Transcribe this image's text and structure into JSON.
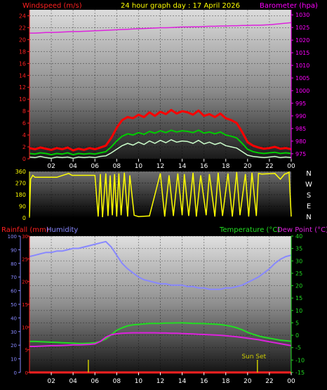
{
  "header": {
    "left_label": "Windspeed (m/s)",
    "title": "24 hour graph day : 17 April 2026",
    "right_label": "Barometer (hpa)"
  },
  "colors": {
    "background": "#000000",
    "wind_axis": "#ff2020",
    "baro_axis": "#ff00ff",
    "wind_gust": "#ff0000",
    "wind_avg": "#00cc00",
    "wind_speed": "#ccffcc",
    "barometer": "#dd22dd",
    "direction": "#ffff00",
    "temperature": "#22dd22",
    "dewpoint": "#dd22dd",
    "humidity": "#8888ff",
    "rain": "#ff2020",
    "header_title": "#ffff00",
    "sunrise_marker": "#cccc00"
  },
  "x_axis": {
    "tick_labels": [
      "02",
      "04",
      "06",
      "08",
      "10",
      "12",
      "14",
      "16",
      "18",
      "20",
      "22",
      "00"
    ]
  },
  "chart_data": [
    {
      "type": "line",
      "name": "wind_barometer",
      "x_hours": [
        0,
        0.5,
        1,
        1.5,
        2,
        2.5,
        3,
        3.5,
        4,
        4.5,
        5,
        5.5,
        6,
        6.5,
        7,
        7.5,
        8,
        8.5,
        9,
        9.5,
        10,
        10.5,
        11,
        11.5,
        12,
        12.5,
        13,
        13.5,
        14,
        14.5,
        15,
        15.5,
        16,
        16.5,
        17,
        17.5,
        18,
        18.5,
        19,
        19.5,
        20,
        20.5,
        21,
        21.5,
        22,
        22.5,
        23,
        23.5,
        24
      ],
      "series": [
        {
          "key": "gust",
          "values": [
            1.8,
            1.6,
            1.9,
            1.7,
            1.5,
            1.8,
            1.6,
            1.9,
            1.4,
            1.7,
            1.5,
            1.8,
            1.6,
            1.9,
            2.2,
            3.5,
            5.2,
            6.5,
            7.0,
            6.8,
            7.4,
            7.0,
            7.8,
            7.2,
            7.9,
            7.5,
            8.2,
            7.6,
            8.0,
            7.8,
            7.4,
            8.1,
            7.2,
            7.5,
            7.0,
            7.6,
            6.8,
            6.5,
            6.0,
            4.5,
            2.8,
            2.2,
            1.9,
            1.7,
            1.8,
            2.0,
            1.7,
            1.8,
            1.6
          ]
        },
        {
          "key": "average",
          "values": [
            0.9,
            0.8,
            1.0,
            0.9,
            0.7,
            0.9,
            0.8,
            1.0,
            0.7,
            0.9,
            0.8,
            0.9,
            0.8,
            1.0,
            1.2,
            2.0,
            3.0,
            3.8,
            4.2,
            4.0,
            4.4,
            4.1,
            4.6,
            4.3,
            4.7,
            4.4,
            4.8,
            4.5,
            4.7,
            4.6,
            4.4,
            4.8,
            4.3,
            4.5,
            4.2,
            4.5,
            4.0,
            3.8,
            3.5,
            2.6,
            1.6,
            1.2,
            1.0,
            0.9,
            1.0,
            1.1,
            0.9,
            1.0,
            0.9
          ]
        },
        {
          "key": "speed",
          "values": [
            0.3,
            0.2,
            0.4,
            0.2,
            0.1,
            0.3,
            0.2,
            0.3,
            0.1,
            0.3,
            0.2,
            0.3,
            0.2,
            0.4,
            0.5,
            1.0,
            1.6,
            2.2,
            2.6,
            2.3,
            2.8,
            2.4,
            3.0,
            2.6,
            3.1,
            2.7,
            3.2,
            2.8,
            3.0,
            2.9,
            2.6,
            3.1,
            2.5,
            2.8,
            2.4,
            2.7,
            2.2,
            2.0,
            1.8,
            1.2,
            0.6,
            0.4,
            0.3,
            0.2,
            0.3,
            0.4,
            0.2,
            0.3,
            0.2
          ]
        }
      ],
      "barometer_values": [
        1022.8,
        1022.8,
        1022.9,
        1023.0,
        1023.0,
        1023.1,
        1023.2,
        1023.3,
        1023.4,
        1023.4,
        1023.5,
        1023.6,
        1023.7,
        1023.8,
        1023.9,
        1024.0,
        1024.1,
        1024.2,
        1024.3,
        1024.4,
        1024.5,
        1024.6,
        1024.7,
        1024.8,
        1024.9,
        1024.9,
        1025.0,
        1025.1,
        1025.2,
        1025.2,
        1025.3,
        1025.3,
        1025.4,
        1025.5,
        1025.5,
        1025.6,
        1025.6,
        1025.7,
        1025.7,
        1025.8,
        1025.8,
        1025.9,
        1025.9,
        1026.0,
        1026.1,
        1026.3,
        1026.5,
        1026.7,
        1026.9
      ],
      "wind_ticks": [
        0,
        2,
        4,
        6,
        8,
        10,
        12,
        14,
        16,
        18,
        20,
        22,
        24
      ],
      "baro_ticks": [
        975,
        980,
        985,
        990,
        995,
        1000,
        1005,
        1010,
        1015,
        1020,
        1025,
        1030
      ],
      "wind_range": [
        0,
        25
      ],
      "baro_range": [
        973,
        1032
      ]
    },
    {
      "type": "line",
      "name": "wind_direction",
      "y_ticks": [
        0,
        90,
        180,
        270,
        360
      ],
      "y_range": [
        0,
        360
      ],
      "compass_labels": [
        "N",
        "W",
        "S",
        "E",
        "N"
      ],
      "x_hours": [
        0,
        0.1,
        0.3,
        0.5,
        2.5,
        3.6,
        3.9,
        6.0,
        6.3,
        6.5,
        6.7,
        7.0,
        7.2,
        7.4,
        7.6,
        7.8,
        8.0,
        8.2,
        8.4,
        8.7,
        9.0,
        9.2,
        9.6,
        10.0,
        11.0,
        12.0,
        12.4,
        12.8,
        13.2,
        13.6,
        14.0,
        14.2,
        14.6,
        15.0,
        15.3,
        15.7,
        16.2,
        16.5,
        17.0,
        17.3,
        17.7,
        18.2,
        18.6,
        19.0,
        19.3,
        19.8,
        20.1,
        20.4,
        20.8,
        21.0,
        21.3,
        22.5,
        23.0,
        23.4,
        23.6,
        23.8,
        24.0
      ],
      "values": [
        10,
        300,
        330,
        315,
        315,
        345,
        330,
        330,
        10,
        340,
        5,
        345,
        15,
        330,
        20,
        340,
        10,
        345,
        20,
        350,
        10,
        330,
        20,
        10,
        15,
        345,
        10,
        330,
        15,
        345,
        20,
        340,
        15,
        350,
        10,
        330,
        20,
        340,
        10,
        350,
        15,
        345,
        10,
        355,
        20,
        340,
        10,
        350,
        15,
        345,
        340,
        345,
        300,
        340,
        345,
        355,
        10
      ]
    },
    {
      "type": "line",
      "name": "temp_humidity_rain",
      "x_hours": [
        0,
        0.5,
        1,
        1.5,
        2,
        2.5,
        3,
        3.5,
        4,
        4.5,
        5,
        5.5,
        6,
        6.5,
        7,
        7.5,
        8,
        8.5,
        9,
        9.5,
        10,
        10.5,
        11,
        11.5,
        12,
        12.5,
        13,
        13.5,
        14,
        14.5,
        15,
        15.5,
        16,
        16.5,
        17,
        17.5,
        18,
        18.5,
        19,
        19.5,
        20,
        20.5,
        21,
        21.5,
        22,
        22.5,
        23,
        23.5,
        24
      ],
      "series": [
        {
          "key": "temperature",
          "values": [
            -2.5,
            -2.5,
            -2.6,
            -2.7,
            -2.8,
            -2.9,
            -3.0,
            -3.1,
            -3.2,
            -3.3,
            -3.3,
            -3.2,
            -3.0,
            -2.5,
            -1.5,
            0.2,
            2.0,
            3.0,
            3.8,
            4.2,
            4.4,
            4.6,
            4.8,
            4.8,
            4.8,
            4.9,
            4.9,
            5.0,
            5.0,
            4.9,
            4.8,
            4.8,
            4.7,
            4.6,
            4.5,
            4.3,
            4.0,
            3.6,
            3.0,
            2.2,
            1.2,
            0.4,
            -0.3,
            -0.8,
            -1.2,
            -1.6,
            -2.0,
            -2.2,
            -2.4
          ]
        },
        {
          "key": "dewpoint",
          "values": [
            -4.5,
            -4.5,
            -4.4,
            -4.3,
            -4.2,
            -4.2,
            -4.1,
            -4.0,
            -3.9,
            -3.9,
            -3.8,
            -3.7,
            -3.5,
            -2.5,
            -0.8,
            0.2,
            0.6,
            0.8,
            0.9,
            1.0,
            1.0,
            1.0,
            1.0,
            1.0,
            0.9,
            0.9,
            0.8,
            0.8,
            0.7,
            0.6,
            0.5,
            0.4,
            0.3,
            0.2,
            0.1,
            0.0,
            -0.2,
            -0.4,
            -0.6,
            -0.9,
            -1.2,
            -1.5,
            -1.8,
            -2.2,
            -2.6,
            -3.0,
            -3.4,
            -3.8,
            -4.2
          ]
        },
        {
          "key": "humidity",
          "values": [
            85,
            86,
            87,
            88,
            88,
            89,
            89,
            90,
            91,
            91,
            92,
            93,
            94,
            95,
            96,
            92,
            86,
            80,
            76,
            73,
            70,
            68,
            67,
            66,
            65,
            65,
            64,
            64,
            64,
            63,
            63,
            62,
            62,
            61,
            61,
            61,
            62,
            62,
            63,
            64,
            66,
            68,
            70,
            73,
            76,
            80,
            83,
            85,
            86
          ]
        }
      ],
      "rain_values_mm": [
        0,
        0,
        0,
        0,
        0,
        0,
        0,
        0,
        0,
        0,
        0,
        0,
        0,
        0,
        0,
        0,
        0,
        0,
        0,
        0,
        0,
        0,
        0,
        0,
        0,
        0,
        0,
        0,
        0,
        0,
        0,
        0,
        0,
        0,
        0,
        0,
        0,
        0,
        0,
        0,
        0,
        0,
        0,
        0,
        0,
        0,
        0,
        0,
        0
      ],
      "sunrise_hour": 5.4,
      "sunset_hour": 20.9,
      "sun_set_label": "Sun Set",
      "rain_ticks": [
        0,
        5,
        10,
        15,
        20,
        25,
        30
      ],
      "humidity_ticks": [
        0,
        10,
        20,
        30,
        40,
        50,
        60,
        70,
        80,
        90,
        100
      ],
      "temp_ticks": [
        -15,
        -10,
        -5,
        0,
        5,
        10,
        15,
        20,
        25,
        30,
        35,
        40
      ],
      "rain_range": [
        0,
        30
      ],
      "humidity_range": [
        0,
        100
      ],
      "temp_range": [
        -15,
        40
      ],
      "left_label": "Rainfall (mm)",
      "left_label_2": "Humidity",
      "right_label": "Temperature (°C)",
      "right_label_2": "Dew Point (°C)"
    }
  ]
}
